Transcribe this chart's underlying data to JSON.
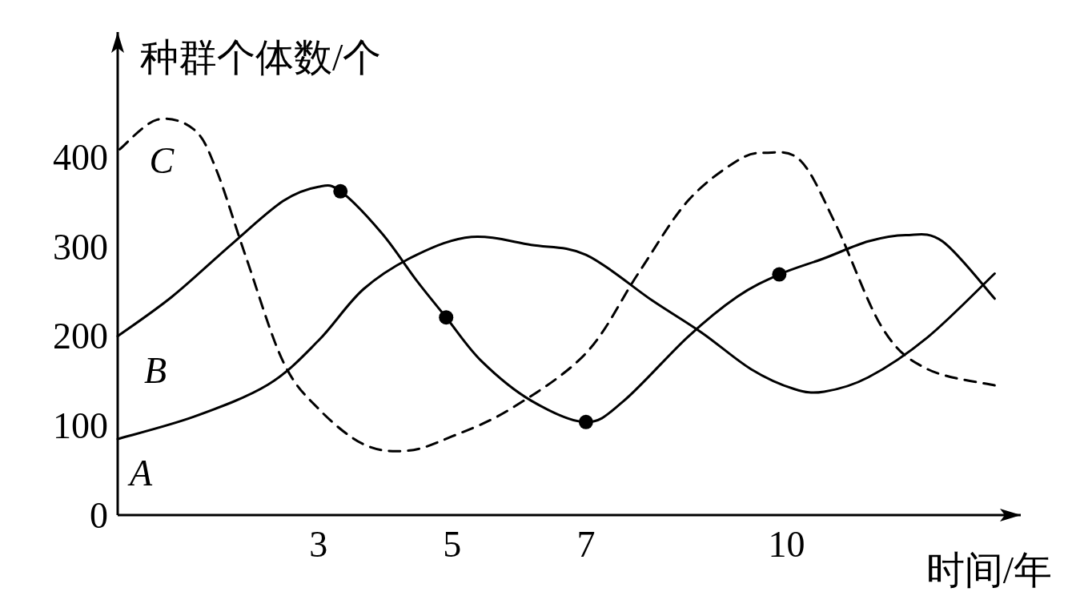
{
  "chart_data": {
    "type": "line",
    "xlabel": "时间/年",
    "ylabel": "种群个体数/个",
    "xlim": [
      0,
      13.5
    ],
    "ylim": [
      0,
      540
    ],
    "xticks": [
      3,
      5,
      7,
      10
    ],
    "yticks": [
      0,
      100,
      200,
      300,
      400
    ],
    "series": [
      {
        "name": "A",
        "color": "#000000",
        "line_style": "solid",
        "x": [
          0,
          1.14,
          2.25,
          3,
          3.68,
          4.47,
          5.29,
          6.18,
          7,
          7.99,
          8.73,
          9.47,
          10.11,
          10.56,
          11.22,
          12.11,
          13.11
        ],
        "values": [
          85,
          110,
          146,
          195,
          253,
          291,
          311,
          302,
          291,
          240,
          204,
          163,
          141,
          138,
          154,
          199,
          270
        ]
      },
      {
        "name": "B",
        "color": "#000000",
        "line_style": "solid",
        "x": [
          0,
          0.81,
          1.69,
          2.47,
          3,
          3.33,
          3.95,
          4.47,
          4.91,
          5.44,
          6.18,
          7,
          7.57,
          8.52,
          9.26,
          9.89,
          10.56,
          11.22,
          11.78,
          12.33,
          13.11
        ],
        "values": [
          200,
          244,
          302,
          351,
          367,
          362,
          315,
          262,
          221,
          172,
          128,
          104,
          128,
          199,
          244,
          269,
          287,
          306,
          313,
          306,
          242
        ]
      },
      {
        "name": "C",
        "color": "#000000",
        "line_style": "dashed",
        "x": [
          0.03,
          0.59,
          1.14,
          1.47,
          1.92,
          2.47,
          3,
          3.68,
          4.34,
          5,
          5.88,
          7,
          7.78,
          8.52,
          9.26,
          9.68,
          10.21,
          10.74,
          11.44,
          12.11,
          13.11
        ],
        "values": [
          409,
          442,
          431,
          387,
          288,
          172,
          119,
          79,
          72,
          88,
          119,
          181,
          270,
          351,
          396,
          405,
          396,
          324,
          208,
          163,
          145
        ]
      },
      {
        "type": "scatter",
        "color": "#000000",
        "marker": "circle",
        "x": [
          3.33,
          4.91,
          7,
          9.89
        ],
        "values": [
          362,
          221,
          104,
          269
        ]
      }
    ]
  }
}
